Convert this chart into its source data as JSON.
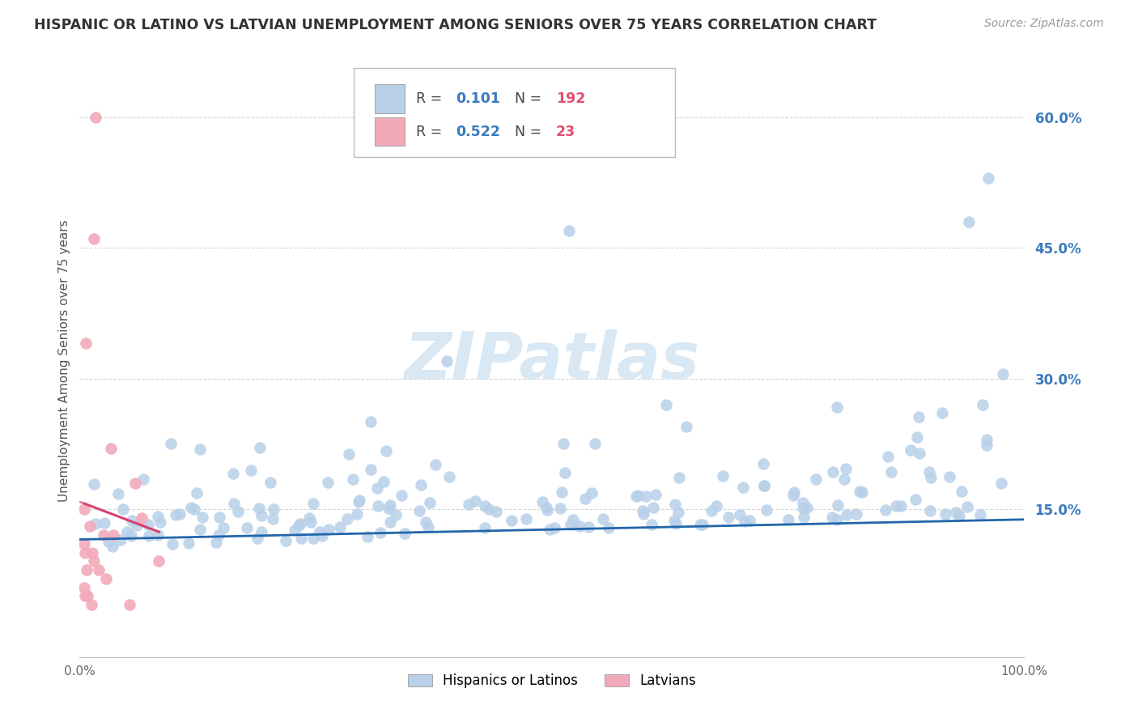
{
  "title": "HISPANIC OR LATINO VS LATVIAN UNEMPLOYMENT AMONG SENIORS OVER 75 YEARS CORRELATION CHART",
  "source": "Source: ZipAtlas.com",
  "ylabel": "Unemployment Among Seniors over 75 years",
  "blue_R": 0.101,
  "blue_N": 192,
  "pink_R": 0.522,
  "pink_N": 23,
  "blue_color": "#b8d0e8",
  "pink_color": "#f2aaba",
  "blue_line_color": "#2266aa",
  "pink_line_color": "#d94070",
  "legend_label_blue": "Hispanics or Latinos",
  "legend_label_pink": "Latvians",
  "xlim": [
    0.0,
    1.0
  ],
  "ylim": [
    -0.02,
    0.66
  ],
  "yticks": [
    0.15,
    0.3,
    0.45,
    0.6
  ],
  "ytick_labels": [
    "15.0%",
    "30.0%",
    "45.0%",
    "60.0%"
  ],
  "xtick_vals": [
    0.0,
    1.0
  ],
  "xtick_labels": [
    "0.0%",
    "100.0%"
  ],
  "blue_seed": 42,
  "pink_seed": 7,
  "watermark_text": "ZIPatlas",
  "watermark_color": "#d8e8f4",
  "background_color": "#ffffff",
  "grid_color": "#cccccc",
  "title_color": "#333333",
  "source_color": "#999999",
  "ylabel_color": "#555555",
  "ytick_color": "#3a7abf",
  "r_color": "#3a7abf",
  "n_color": "#e05070"
}
